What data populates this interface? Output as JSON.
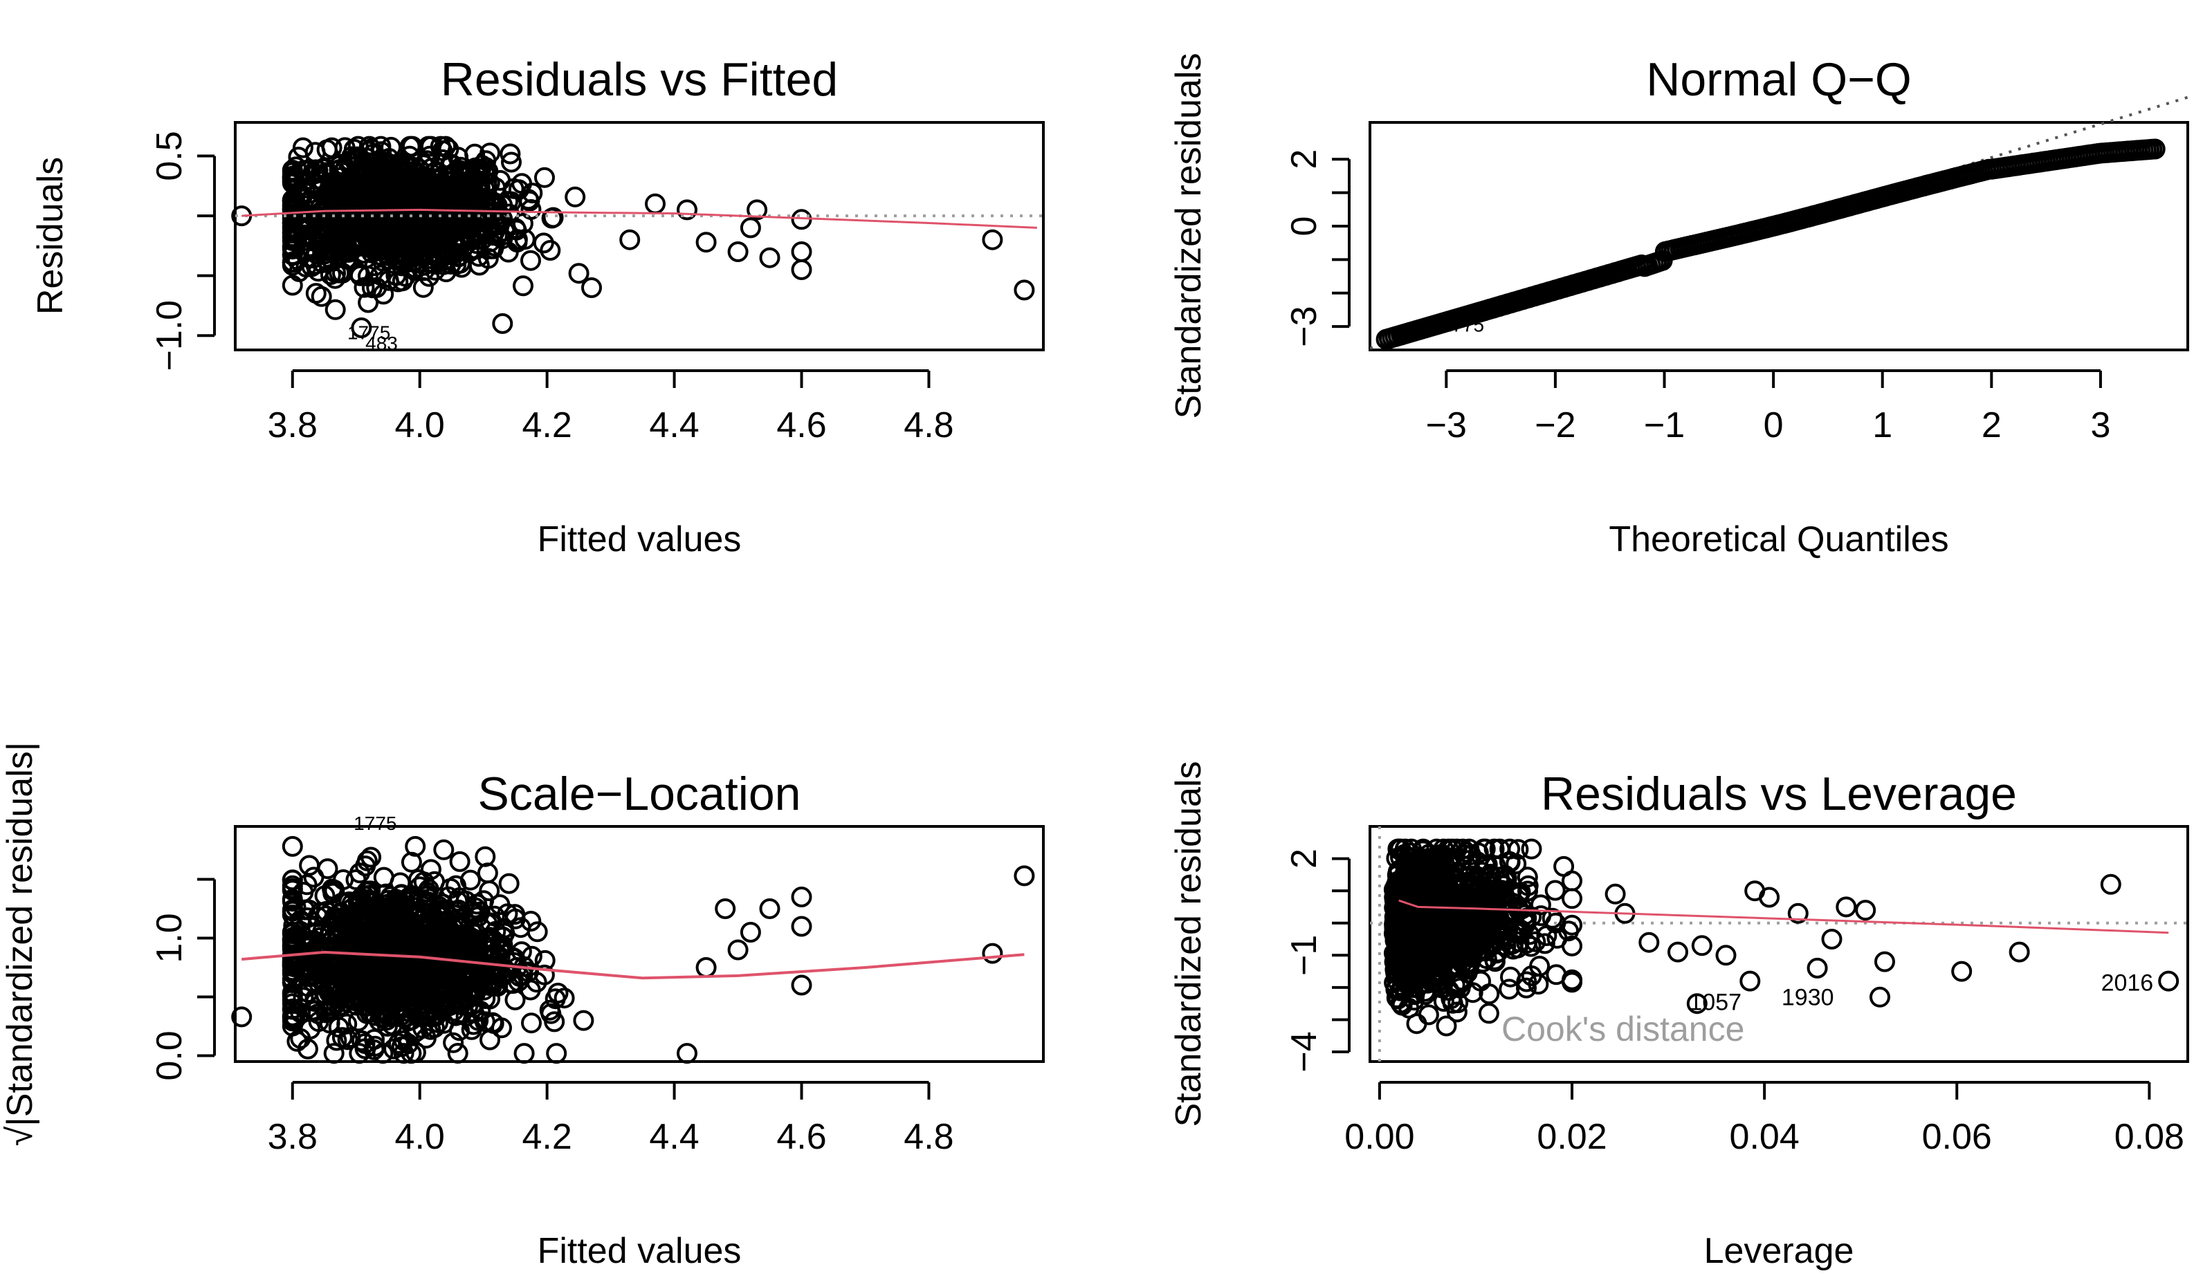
{
  "colors": {
    "points": "#000000",
    "smooth": "#DF536B",
    "reference": "#9E9E9E",
    "qq_line": "#555555",
    "cook": "#9E9E9E"
  },
  "chart_data": [
    {
      "id": "rvf",
      "type": "scatter",
      "title": "Residuals vs Fitted",
      "xlabel": "Fitted values",
      "ylabel": "Residuals",
      "xlim": [
        3.71,
        4.98
      ],
      "ylim": [
        -1.12,
        0.78
      ],
      "xticks": [
        3.8,
        4.0,
        4.2,
        4.4,
        4.6,
        4.8
      ],
      "xtick_labels": [
        "3.8",
        "4.0",
        "4.2",
        "4.4",
        "4.6",
        "4.8"
      ],
      "yticks": [
        0.5,
        0.0,
        -0.5,
        -1.0
      ],
      "ytick_labels": [
        "0.5",
        "",
        "",
        "−1.0"
      ],
      "reference_line": {
        "y": 0
      },
      "smooth": {
        "x": [
          3.72,
          3.85,
          4.0,
          4.2,
          4.4,
          4.6,
          4.8,
          4.97
        ],
        "y": [
          0.0,
          0.04,
          0.05,
          0.03,
          0.02,
          -0.02,
          -0.06,
          -0.1
        ]
      },
      "outliers": [
        {
          "x": 3.72,
          "y": 0.0
        },
        {
          "x": 4.37,
          "y": 0.1
        },
        {
          "x": 4.42,
          "y": 0.05
        },
        {
          "x": 4.45,
          "y": -0.22
        },
        {
          "x": 4.5,
          "y": -0.3
        },
        {
          "x": 4.52,
          "y": -0.1
        },
        {
          "x": 4.53,
          "y": 0.05
        },
        {
          "x": 4.55,
          "y": -0.35
        },
        {
          "x": 4.6,
          "y": -0.03
        },
        {
          "x": 4.6,
          "y": -0.3
        },
        {
          "x": 4.6,
          "y": -0.45
        },
        {
          "x": 4.9,
          "y": -0.2
        },
        {
          "x": 4.95,
          "y": -0.62
        },
        {
          "x": 4.33,
          "y": -0.2
        },
        {
          "x": 4.27,
          "y": -0.6
        },
        {
          "x": 4.25,
          "y": -0.48
        },
        {
          "x": 4.13,
          "y": -0.9
        }
      ],
      "labels": [
        {
          "text": "1775",
          "x": 3.92,
          "y": -1.03
        },
        {
          "text": "483",
          "x": 3.94,
          "y": -1.12
        }
      ]
    },
    {
      "id": "qq",
      "type": "scatter",
      "title": "Normal Q−Q",
      "xlabel": "Theoretical Quantiles",
      "ylabel": "Standardized residuals",
      "xlim": [
        -3.7,
        3.8
      ],
      "ylim": [
        -3.7,
        3.1
      ],
      "xticks": [
        -3,
        -2,
        -1,
        0,
        1,
        2,
        3
      ],
      "xtick_labels": [
        "−3",
        "−2",
        "−1",
        "0",
        "1",
        "2",
        "3"
      ],
      "yticks": [
        2,
        1,
        0,
        -1,
        -2,
        -3
      ],
      "ytick_labels": [
        "2",
        "",
        "0",
        "",
        "",
        "−3"
      ],
      "qq_line": {
        "slope": 1.0,
        "intercept": 0.05
      },
      "labels": [
        {
          "text": "483",
          "x": -3.32,
          "y": -3.35
        },
        {
          "text": "1775",
          "x": -2.85,
          "y": -3.15
        }
      ]
    },
    {
      "id": "sl",
      "type": "scatter",
      "title": "Scale−Location",
      "xlabel": "Fitted values",
      "ylabel": "√|Standardized residuals|",
      "xlim": [
        3.71,
        4.98
      ],
      "ylim": [
        -0.05,
        1.95
      ],
      "xticks": [
        3.8,
        4.0,
        4.2,
        4.4,
        4.6,
        4.8
      ],
      "xtick_labels": [
        "3.8",
        "4.0",
        "4.2",
        "4.4",
        "4.6",
        "4.8"
      ],
      "yticks": [
        0.0,
        0.5,
        1.0,
        1.5
      ],
      "ytick_labels": [
        "0.0",
        "",
        "1.0",
        ""
      ],
      "smooth": {
        "x": [
          3.72,
          3.85,
          4.0,
          4.2,
          4.35,
          4.5,
          4.7,
          4.95
        ],
        "y": [
          0.82,
          0.88,
          0.84,
          0.73,
          0.66,
          0.68,
          0.75,
          0.86
        ]
      },
      "outliers": [
        {
          "x": 3.72,
          "y": 0.33
        },
        {
          "x": 4.6,
          "y": 1.35
        },
        {
          "x": 4.6,
          "y": 1.1
        },
        {
          "x": 4.6,
          "y": 0.6
        },
        {
          "x": 4.9,
          "y": 0.87
        },
        {
          "x": 4.95,
          "y": 1.53
        },
        {
          "x": 4.55,
          "y": 1.25
        },
        {
          "x": 4.52,
          "y": 1.05
        },
        {
          "x": 4.5,
          "y": 0.9
        },
        {
          "x": 4.45,
          "y": 0.75
        },
        {
          "x": 4.42,
          "y": 0.02
        },
        {
          "x": 4.48,
          "y": 1.25
        }
      ],
      "labels": [
        {
          "text": "1775",
          "x": 3.93,
          "y": 1.92
        }
      ]
    },
    {
      "id": "rvl",
      "type": "scatter",
      "title": "Residuals vs Leverage",
      "xlabel": "Leverage",
      "ylabel": "Standardized residuals",
      "xlim": [
        -0.001,
        0.084
      ],
      "ylim": [
        -4.3,
        3.0
      ],
      "xticks": [
        0.0,
        0.02,
        0.04,
        0.06,
        0.08
      ],
      "xtick_labels": [
        "0.00",
        "0.02",
        "0.04",
        "0.06",
        "0.08"
      ],
      "yticks": [
        2,
        1,
        0,
        -1,
        -2,
        -3,
        -4
      ],
      "ytick_labels": [
        "2",
        "",
        "",
        "−1",
        "",
        "",
        "−4"
      ],
      "reference_line": {
        "y": 0
      },
      "smooth": {
        "x": [
          0.002,
          0.004,
          0.01,
          0.02,
          0.04,
          0.06,
          0.082
        ],
        "y": [
          0.7,
          0.5,
          0.45,
          0.35,
          0.15,
          -0.05,
          -0.3
        ]
      },
      "outliers": [
        {
          "x": 0.076,
          "y": 1.2
        },
        {
          "x": 0.082,
          "y": -1.8
        },
        {
          "x": 0.0665,
          "y": -0.9
        },
        {
          "x": 0.0605,
          "y": -1.5
        },
        {
          "x": 0.0525,
          "y": -1.2
        },
        {
          "x": 0.052,
          "y": -2.3
        },
        {
          "x": 0.0505,
          "y": 0.4
        },
        {
          "x": 0.0485,
          "y": 0.5
        },
        {
          "x": 0.047,
          "y": -0.5
        },
        {
          "x": 0.0455,
          "y": -1.4
        },
        {
          "x": 0.0435,
          "y": 0.3
        },
        {
          "x": 0.0405,
          "y": 0.8
        },
        {
          "x": 0.039,
          "y": 1.0
        },
        {
          "x": 0.0385,
          "y": -1.8
        },
        {
          "x": 0.036,
          "y": -1.0
        },
        {
          "x": 0.0335,
          "y": -0.7
        },
        {
          "x": 0.031,
          "y": -0.9
        },
        {
          "x": 0.033,
          "y": -2.5
        },
        {
          "x": 0.028,
          "y": -0.6
        },
        {
          "x": 0.0255,
          "y": 0.3
        },
        {
          "x": 0.0245,
          "y": 0.9
        }
      ],
      "cook_label": "Cook's distance",
      "labels": [
        {
          "text": "1057",
          "x": 0.0349,
          "y": -2.7
        },
        {
          "text": "1930",
          "x": 0.0445,
          "y": -2.55
        },
        {
          "text": "2016",
          "x": 0.0777,
          "y": -2.1
        }
      ]
    }
  ]
}
